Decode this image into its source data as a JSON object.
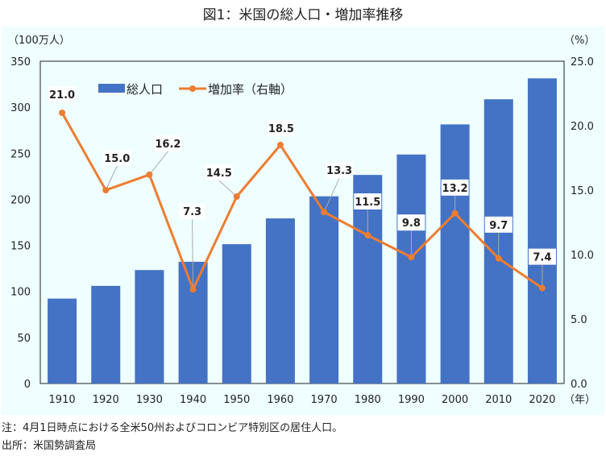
{
  "title": "図1：米国の総人口・増加率推移",
  "notes": {
    "note": "注：4月1日時点における全米50州およびコロンビア特別区の居住人口。",
    "source": "出所：米国勢調査局"
  },
  "chart_data": {
    "type": "bar+line",
    "categories": [
      "1910",
      "1920",
      "1930",
      "1940",
      "1950",
      "1960",
      "1970",
      "1980",
      "1990",
      "2000",
      "2010",
      "2020"
    ],
    "xlabel": "（年）",
    "ylabel_left": "（100万人）",
    "ylabel_right": "（%）",
    "ylim_left": [
      0,
      350
    ],
    "yticks_left": [
      "0",
      "50",
      "100",
      "150",
      "200",
      "250",
      "300",
      "350"
    ],
    "ylim_right": [
      0,
      25
    ],
    "yticks_right": [
      "0.0",
      "5.0",
      "10.0",
      "15.0",
      "20.0",
      "25.0"
    ],
    "legend_position": "top-left",
    "series": [
      {
        "name": "総人口",
        "type": "bar",
        "axis": "left",
        "color": "#4472c4",
        "values": [
          92.2,
          106.0,
          123.2,
          132.2,
          151.3,
          179.3,
          203.3,
          226.5,
          248.7,
          281.4,
          308.7,
          331.4
        ]
      },
      {
        "name": "増加率（右軸）",
        "type": "line",
        "axis": "right",
        "color": "#ed7d31",
        "values": [
          21.0,
          15.0,
          16.2,
          7.3,
          14.5,
          18.5,
          13.3,
          11.5,
          9.8,
          13.2,
          9.7,
          7.4
        ],
        "labels": [
          "21.0",
          "15.0",
          "16.2",
          "7.3",
          "14.5",
          "18.5",
          "13.3",
          "11.5",
          "9.8",
          "13.2",
          "9.7",
          "7.4"
        ]
      }
    ]
  }
}
